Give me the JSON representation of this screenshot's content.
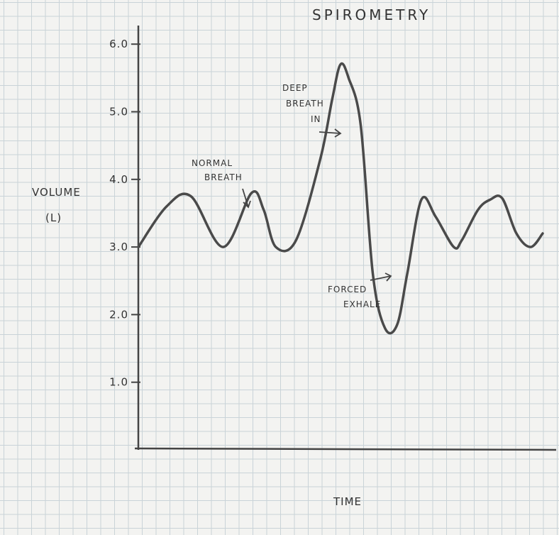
{
  "chart_data": {
    "type": "line",
    "title": "SPIROMETRY",
    "xlabel": "TIME",
    "ylabel": "VOLUME",
    "ylabel_unit": "(L)",
    "ylim": [
      0,
      6.2
    ],
    "yticks": [
      1.0,
      2.0,
      3.0,
      4.0,
      5.0,
      6.0
    ],
    "ytick_labels": [
      "1.0",
      "2.0",
      "3.0",
      "4.0",
      "5.0",
      "6.0"
    ],
    "grid": true,
    "series": [
      {
        "x": [
          0,
          0.07,
          0.13,
          0.21,
          0.28,
          0.31,
          0.34,
          0.39,
          0.45,
          0.48,
          0.5,
          0.52,
          0.55,
          0.58,
          0.61,
          0.64,
          0.665,
          0.7,
          0.735,
          0.78,
          0.8,
          0.84,
          0.87,
          0.9,
          0.935,
          0.97,
          1.0
        ],
        "y": [
          3.0,
          3.6,
          3.75,
          3.0,
          3.8,
          3.55,
          3.0,
          3.1,
          4.3,
          5.2,
          5.7,
          5.5,
          4.8,
          2.6,
          1.8,
          1.85,
          2.6,
          3.7,
          3.45,
          3.0,
          3.1,
          3.55,
          3.7,
          3.72,
          3.2,
          3.0,
          3.2
        ]
      }
    ],
    "annotations": [
      {
        "lines": [
          "NORMAL",
          "BREATH"
        ]
      },
      {
        "lines": [
          "DEEP",
          "BREATH",
          "IN"
        ]
      },
      {
        "lines": [
          "FORCED",
          "EXHALE"
        ]
      }
    ]
  },
  "colors": {
    "pencil": "#4a4a4a",
    "grid": "#c9d3d8",
    "paper": "#f3f3f1"
  }
}
